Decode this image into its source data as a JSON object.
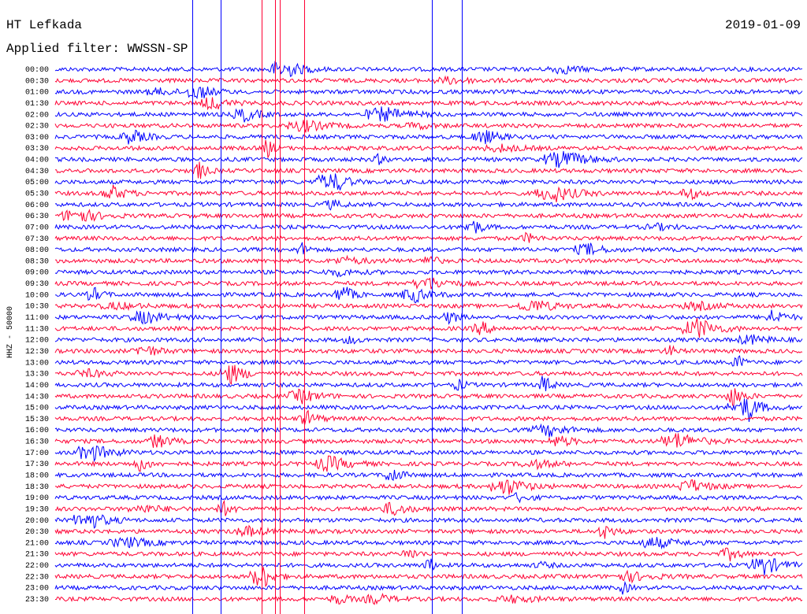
{
  "header": {
    "station": "HT Lefkada",
    "date": "2019-01-09",
    "filter": "Applied filter: WWSSN-SP"
  },
  "axis_label": "HHZ - 50000",
  "rows": [
    "00:00",
    "00:30",
    "01:00",
    "01:30",
    "02:00",
    "02:30",
    "03:00",
    "03:30",
    "04:00",
    "04:30",
    "05:00",
    "05:30",
    "06:00",
    "06:30",
    "07:00",
    "07:30",
    "08:00",
    "08:30",
    "09:00",
    "09:30",
    "10:00",
    "10:30",
    "11:00",
    "11:30",
    "12:00",
    "12:30",
    "13:00",
    "13:30",
    "14:00",
    "14:30",
    "15:00",
    "15:30",
    "16:00",
    "16:30",
    "17:00",
    "17:30",
    "18:00",
    "18:30",
    "19:00",
    "19:30",
    "20:00",
    "20:30",
    "21:00",
    "21:30",
    "22:00",
    "22:30",
    "23:00",
    "23:30"
  ]
}
